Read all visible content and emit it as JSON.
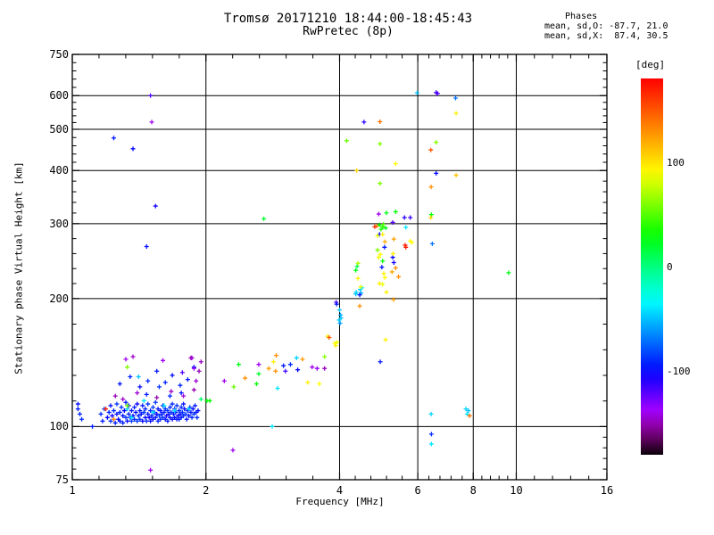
{
  "title": {
    "line1": "Tromsø 20171210 18:44:00-18:45:43",
    "line2": "RwPretec (8p)"
  },
  "phases_box": {
    "header": "Phases",
    "line_o": "mean, sd,O: -87.7, 21.0",
    "line_x": "mean, sd,X:  87.4, 30.5"
  },
  "chart_data": {
    "type": "scatter",
    "title": "Tromsø 20171210 18:44:00-18:45:43  RwPretec (8p)",
    "xlabel": "Frequency [MHz]",
    "ylabel": "Stationary phase Virtual Height [km]",
    "xscale": "log",
    "yscale": "log",
    "xlim": [
      1,
      16
    ],
    "ylim": [
      75,
      750
    ],
    "xticks": [
      1,
      2,
      4,
      6,
      8,
      10,
      16
    ],
    "yticks": [
      750,
      600,
      500,
      400,
      300,
      200,
      100,
      75
    ],
    "grid": true,
    "marker": "plus",
    "colorbar": {
      "label": "[deg]",
      "ticks": [
        100,
        0,
        -100
      ],
      "range": [
        180,
        -180
      ]
    },
    "series_note": "points are [frequency_MHz, virtual_height_km, phase_deg]",
    "points": [
      [
        1.16,
        107,
        -90
      ],
      [
        1.17,
        103,
        -95
      ],
      [
        1.18,
        110,
        -85
      ],
      [
        1.2,
        105,
        -100
      ],
      [
        1.21,
        108,
        -92
      ],
      [
        1.22,
        103,
        -88
      ],
      [
        1.22,
        112,
        -96
      ],
      [
        1.23,
        106,
        -105
      ],
      [
        1.24,
        109,
        -90
      ],
      [
        1.25,
        102,
        -94
      ],
      [
        1.26,
        107,
        -98
      ],
      [
        1.26,
        113,
        -86
      ],
      [
        1.27,
        104,
        -102
      ],
      [
        1.28,
        108,
        -91
      ],
      [
        1.28,
        103,
        -95
      ],
      [
        1.29,
        111,
        -89
      ],
      [
        1.3,
        106,
        -97
      ],
      [
        1.3,
        102,
        -93
      ],
      [
        1.31,
        109,
        -101
      ],
      [
        1.32,
        105,
        -87
      ],
      [
        1.32,
        114,
        -95
      ],
      [
        1.33,
        103,
        -99
      ],
      [
        1.34,
        107,
        -92
      ],
      [
        1.34,
        112,
        -104
      ],
      [
        1.35,
        105,
        -90
      ],
      [
        1.36,
        109,
        -96
      ],
      [
        1.36,
        103,
        -88
      ],
      [
        1.37,
        106,
        -100
      ],
      [
        1.38,
        111,
        -94
      ],
      [
        1.38,
        104,
        -92
      ],
      [
        1.39,
        108,
        -98
      ],
      [
        1.4,
        103,
        -86
      ],
      [
        1.4,
        113,
        -103
      ],
      [
        1.41,
        106,
        -91
      ],
      [
        1.42,
        109,
        -95
      ],
      [
        1.42,
        104,
        -89
      ],
      [
        1.43,
        107,
        -97
      ],
      [
        1.44,
        112,
        -93
      ],
      [
        1.44,
        103,
        -101
      ],
      [
        1.45,
        108,
        -87
      ],
      [
        1.46,
        105,
        -99
      ],
      [
        1.46,
        110,
        -94
      ],
      [
        1.47,
        103,
        -90
      ],
      [
        1.48,
        107,
        -96
      ],
      [
        1.48,
        113,
        -88
      ],
      [
        1.49,
        105,
        -102
      ],
      [
        1.5,
        109,
        -92
      ],
      [
        1.5,
        103,
        -98
      ],
      [
        1.51,
        106,
        -94
      ],
      [
        1.52,
        111,
        -86
      ],
      [
        1.52,
        104,
        -100
      ],
      [
        1.53,
        108,
        -91
      ],
      [
        1.54,
        105,
        -95
      ],
      [
        1.54,
        114,
        -89
      ],
      [
        1.55,
        107,
        -103
      ],
      [
        1.56,
        103,
        -93
      ],
      [
        1.56,
        110,
        -97
      ],
      [
        1.57,
        106,
        -85
      ],
      [
        1.58,
        109,
        -99
      ],
      [
        1.58,
        104,
        -91
      ],
      [
        1.59,
        107,
        -95
      ],
      [
        1.6,
        112,
        -101
      ],
      [
        1.6,
        105,
        -87
      ],
      [
        1.61,
        108,
        -93
      ],
      [
        1.62,
        104,
        -97
      ],
      [
        1.62,
        110,
        -90
      ],
      [
        1.63,
        106,
        -104
      ],
      [
        1.64,
        109,
        -88
      ],
      [
        1.64,
        103,
        -94
      ],
      [
        1.65,
        107,
        -98
      ],
      [
        1.66,
        111,
        -92
      ],
      [
        1.66,
        105,
        -96
      ],
      [
        1.67,
        108,
        -86
      ],
      [
        1.68,
        104,
        -100
      ],
      [
        1.68,
        113,
        -91
      ],
      [
        1.69,
        107,
        -95
      ],
      [
        1.7,
        110,
        -89
      ],
      [
        1.7,
        105,
        -97
      ],
      [
        1.71,
        108,
        -93
      ],
      [
        1.72,
        104,
        -99
      ],
      [
        1.72,
        112,
        -87
      ],
      [
        1.73,
        106,
        -103
      ],
      [
        1.74,
        109,
        -91
      ],
      [
        1.74,
        104,
        -95
      ],
      [
        1.75,
        107,
        -98
      ],
      [
        1.76,
        111,
        -90
      ],
      [
        1.76,
        105,
        -94
      ],
      [
        1.77,
        108,
        -88
      ],
      [
        1.78,
        113,
        -96
      ],
      [
        1.78,
        106,
        -92
      ],
      [
        1.79,
        110,
        -100
      ],
      [
        1.8,
        107,
        -86
      ],
      [
        1.81,
        104,
        -98
      ],
      [
        1.82,
        109,
        -93
      ],
      [
        1.83,
        106,
        -97
      ],
      [
        1.84,
        111,
        -89
      ],
      [
        1.85,
        108,
        -95
      ],
      [
        1.86,
        105,
        -91
      ],
      [
        1.87,
        110,
        -99
      ],
      [
        1.88,
        107,
        -87
      ],
      [
        1.89,
        112,
        -94
      ],
      [
        1.9,
        108,
        -96
      ],
      [
        1.91,
        105,
        -90
      ],
      [
        1.92,
        109,
        -98
      ],
      [
        1.33,
        110,
        -45
      ],
      [
        1.45,
        115,
        -40
      ],
      [
        1.52,
        108,
        -42
      ],
      [
        1.61,
        112,
        -38
      ],
      [
        1.7,
        109,
        -44
      ],
      [
        1.36,
        105,
        -40
      ],
      [
        1.83,
        110,
        -46
      ],
      [
        1.41,
        131,
        -50
      ],
      [
        1.25,
        118,
        -150
      ],
      [
        1.4,
        120,
        -145
      ],
      [
        1.55,
        117,
        -152
      ],
      [
        1.67,
        121,
        -148
      ],
      [
        1.78,
        118,
        -143
      ],
      [
        1.88,
        122,
        -150
      ],
      [
        1.3,
        116,
        -147
      ],
      [
        1.19,
        110,
        170
      ],
      [
        1.24,
        104,
        135
      ],
      [
        1.33,
        112,
        55
      ],
      [
        1.33,
        138,
        60
      ],
      [
        2.04,
        115,
        30
      ],
      [
        1.03,
        110,
        -95
      ],
      [
        1.04,
        107,
        -92
      ],
      [
        1.03,
        113,
        -98
      ],
      [
        1.05,
        104,
        -90
      ],
      [
        1.11,
        100,
        -93
      ],
      [
        1.5,
        79,
        -140
      ],
      [
        1.28,
        126,
        -95
      ],
      [
        1.35,
        131,
        -92
      ],
      [
        1.42,
        124,
        -98
      ],
      [
        1.48,
        128,
        -90
      ],
      [
        1.55,
        135,
        -96
      ],
      [
        1.62,
        127,
        -93
      ],
      [
        1.68,
        132,
        -99
      ],
      [
        1.75,
        125,
        -91
      ],
      [
        1.82,
        129,
        -95
      ],
      [
        1.88,
        138,
        -94
      ],
      [
        1.9,
        128,
        -145
      ],
      [
        1.93,
        135,
        -150
      ],
      [
        1.95,
        142,
        -148
      ],
      [
        1.85,
        145,
        -152
      ],
      [
        1.57,
        124,
        -88
      ],
      [
        1.47,
        119,
        -94
      ],
      [
        1.66,
        118,
        -90
      ],
      [
        1.76,
        120,
        -96
      ],
      [
        1.32,
        144,
        -140
      ],
      [
        1.37,
        146,
        -146
      ],
      [
        1.6,
        143,
        -138
      ],
      [
        1.86,
        145,
        -142
      ],
      [
        1.88,
        137,
        -135
      ],
      [
        1.77,
        134,
        -120
      ],
      [
        1.5,
        600,
        -120
      ],
      [
        1.51,
        520,
        -140
      ],
      [
        1.24,
        477,
        -95
      ],
      [
        1.37,
        450,
        -100
      ],
      [
        1.54,
        330,
        -105
      ],
      [
        1.47,
        265,
        -98
      ],
      [
        1.95,
        116,
        5
      ],
      [
        2.01,
        115,
        30
      ],
      [
        2.2,
        128,
        -140
      ],
      [
        2.31,
        124,
        55
      ],
      [
        2.37,
        140,
        25
      ],
      [
        2.45,
        130,
        130
      ],
      [
        2.6,
        126,
        30
      ],
      [
        2.63,
        133,
        20
      ],
      [
        2.63,
        140,
        -138
      ],
      [
        2.77,
        137,
        125
      ],
      [
        2.84,
        142,
        95
      ],
      [
        2.87,
        135,
        130
      ],
      [
        2.88,
        147,
        130
      ],
      [
        2.9,
        123,
        -40
      ],
      [
        2.99,
        139,
        -95
      ],
      [
        3.02,
        135,
        -115
      ],
      [
        3.1,
        140,
        -90
      ],
      [
        3.2,
        145,
        -45
      ],
      [
        3.22,
        136,
        -100
      ],
      [
        3.3,
        144,
        125
      ],
      [
        3.39,
        127,
        95
      ],
      [
        3.47,
        138,
        -140
      ],
      [
        3.56,
        137,
        -135
      ],
      [
        3.6,
        126,
        90
      ],
      [
        3.7,
        146,
        60
      ],
      [
        3.7,
        137,
        -148
      ],
      [
        2.3,
        88,
        -140
      ],
      [
        2.82,
        100,
        -40
      ],
      [
        2.7,
        308,
        20
      ],
      [
        3.76,
        163,
        95
      ],
      [
        3.79,
        162,
        150
      ],
      [
        3.9,
        157,
        90
      ],
      [
        3.92,
        155,
        95
      ],
      [
        3.95,
        158,
        85
      ],
      [
        3.93,
        196,
        -120
      ],
      [
        3.94,
        194,
        -95
      ],
      [
        4.0,
        188,
        -50
      ],
      [
        4.02,
        183,
        -55
      ],
      [
        3.99,
        178,
        -45
      ],
      [
        4.01,
        175,
        -60
      ],
      [
        4.03,
        180,
        -50
      ],
      [
        4.45,
        210,
        -45
      ],
      [
        4.47,
        206,
        -55
      ],
      [
        4.44,
        204,
        -95
      ],
      [
        4.49,
        212,
        -40
      ],
      [
        4.44,
        192,
        130
      ],
      [
        4.46,
        213,
        90
      ],
      [
        4.4,
        223,
        95
      ],
      [
        4.35,
        233,
        25
      ],
      [
        5.08,
        160,
        95
      ],
      [
        4.94,
        142,
        -95
      ],
      [
        4.9,
        316,
        -140
      ],
      [
        5.1,
        318,
        25
      ],
      [
        5.35,
        320,
        30
      ],
      [
        5.6,
        310,
        -110
      ],
      [
        5.27,
        302,
        -120
      ],
      [
        4.92,
        298,
        30
      ],
      [
        5.0,
        295,
        40
      ],
      [
        5.08,
        293,
        25
      ],
      [
        5.02,
        299,
        50
      ],
      [
        4.96,
        291,
        35
      ],
      [
        4.85,
        296,
        130
      ],
      [
        4.8,
        295,
        165
      ],
      [
        5.64,
        294,
        -40
      ],
      [
        4.92,
        283,
        -100
      ],
      [
        5.0,
        283,
        95
      ],
      [
        5.06,
        272,
        120
      ],
      [
        5.3,
        276,
        125
      ],
      [
        5.77,
        273,
        90
      ],
      [
        5.62,
        267,
        170
      ],
      [
        5.05,
        264,
        -95
      ],
      [
        4.87,
        281,
        85
      ],
      [
        4.87,
        260,
        60
      ],
      [
        4.9,
        250,
        90
      ],
      [
        5.27,
        250,
        -100
      ],
      [
        5.0,
        245,
        30
      ],
      [
        4.98,
        237,
        -95
      ],
      [
        5.35,
        236,
        130
      ],
      [
        5.25,
        231,
        120
      ],
      [
        5.03,
        229,
        95
      ],
      [
        5.06,
        224,
        90
      ],
      [
        4.92,
        217,
        95
      ],
      [
        5.0,
        216,
        85
      ],
      [
        5.29,
        199,
        125
      ],
      [
        4.38,
        238,
        10
      ],
      [
        4.4,
        242,
        70
      ],
      [
        5.28,
        255,
        95
      ],
      [
        4.94,
        254,
        90
      ],
      [
        5.3,
        243,
        -105
      ],
      [
        5.43,
        225,
        130
      ],
      [
        5.1,
        207,
        95
      ],
      [
        4.35,
        205,
        -50
      ],
      [
        4.36,
        207,
        -45
      ],
      [
        5.82,
        271,
        90
      ],
      [
        5.77,
        310,
        -115
      ],
      [
        5.64,
        264,
        170
      ],
      [
        4.54,
        520,
        -110
      ],
      [
        4.93,
        521,
        140
      ],
      [
        4.15,
        470,
        55
      ],
      [
        4.93,
        462,
        60
      ],
      [
        5.35,
        415,
        90
      ],
      [
        4.37,
        400,
        105
      ],
      [
        4.93,
        373,
        60
      ],
      [
        5.98,
        609,
        -50
      ],
      [
        6.6,
        610,
        -115
      ],
      [
        6.65,
        607,
        -120
      ],
      [
        7.3,
        592,
        -70
      ],
      [
        7.32,
        545,
        95
      ],
      [
        6.6,
        466,
        60
      ],
      [
        6.42,
        447,
        150
      ],
      [
        6.6,
        394,
        -100
      ],
      [
        7.32,
        390,
        110
      ],
      [
        6.43,
        366,
        130
      ],
      [
        6.44,
        315,
        30
      ],
      [
        6.42,
        310,
        105
      ],
      [
        6.47,
        269,
        -70
      ],
      [
        9.61,
        230,
        25
      ],
      [
        6.43,
        107,
        -45
      ],
      [
        7.7,
        110,
        -45
      ],
      [
        7.8,
        109,
        -50
      ],
      [
        7.75,
        107,
        -40
      ],
      [
        7.85,
        106,
        140
      ],
      [
        6.44,
        96,
        -90
      ],
      [
        6.44,
        91,
        -40
      ]
    ]
  }
}
